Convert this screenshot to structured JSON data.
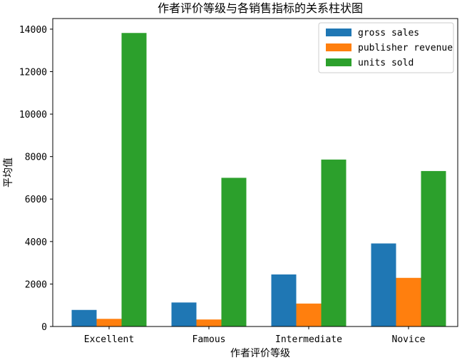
{
  "chart_data": {
    "type": "bar",
    "title": "作者评价等级与各销售指标的关系柱状图",
    "xlabel": "作者评价等级",
    "ylabel": "平均值",
    "categories": [
      "Excellent",
      "Famous",
      "Intermediate",
      "Novice"
    ],
    "series": [
      {
        "name": "gross sales",
        "color": "#1f77b4",
        "values": [
          780,
          1130,
          2450,
          3910
        ]
      },
      {
        "name": "publisher revenue",
        "color": "#ff7f0e",
        "values": [
          360,
          330,
          1080,
          2290
        ]
      },
      {
        "name": "units sold",
        "color": "#2ca02c",
        "values": [
          13820,
          7000,
          7860,
          7320
        ]
      }
    ],
    "ylim": [
      0,
      14500
    ],
    "yticks": [
      0,
      2000,
      4000,
      6000,
      8000,
      10000,
      12000,
      14000
    ],
    "grid": false,
    "legend_position": "top-right"
  }
}
